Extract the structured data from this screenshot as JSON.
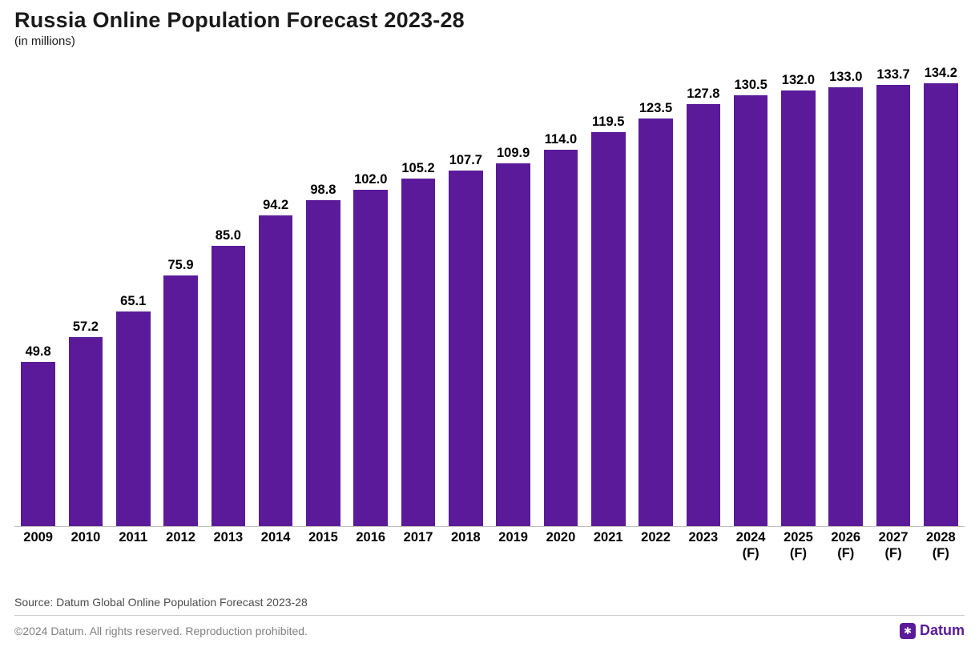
{
  "header": {
    "title": "Russia Online Population Forecast 2023-28",
    "subtitle": "(in millions)"
  },
  "chart": {
    "type": "bar",
    "bar_color": "#5a1a99",
    "background_color": "#ffffff",
    "axis_line_color": "#bfbfbf",
    "bar_width_ratio": 0.72,
    "ylim": [
      0,
      140
    ],
    "title_fontsize": 27,
    "label_fontsize": 16.5,
    "label_fontweight": 700,
    "label_color": "#000000",
    "forecast_marker": "(F)",
    "bars": [
      {
        "category": "2009",
        "value": 49.8,
        "label": "49.8",
        "forecast": false
      },
      {
        "category": "2010",
        "value": 57.2,
        "label": "57.2",
        "forecast": false
      },
      {
        "category": "2011",
        "value": 65.1,
        "label": "65.1",
        "forecast": false
      },
      {
        "category": "2012",
        "value": 75.9,
        "label": "75.9",
        "forecast": false
      },
      {
        "category": "2013",
        "value": 85.0,
        "label": "85.0",
        "forecast": false
      },
      {
        "category": "2014",
        "value": 94.2,
        "label": "94.2",
        "forecast": false
      },
      {
        "category": "2015",
        "value": 98.8,
        "label": "98.8",
        "forecast": false
      },
      {
        "category": "2016",
        "value": 102.0,
        "label": "102.0",
        "forecast": false
      },
      {
        "category": "2017",
        "value": 105.2,
        "label": "105.2",
        "forecast": false
      },
      {
        "category": "2018",
        "value": 107.7,
        "label": "107.7",
        "forecast": false
      },
      {
        "category": "2019",
        "value": 109.9,
        "label": "109.9",
        "forecast": false
      },
      {
        "category": "2020",
        "value": 114.0,
        "label": "114.0",
        "forecast": false
      },
      {
        "category": "2021",
        "value": 119.5,
        "label": "119.5",
        "forecast": false
      },
      {
        "category": "2022",
        "value": 123.5,
        "label": "123.5",
        "forecast": false
      },
      {
        "category": "2023",
        "value": 127.8,
        "label": "127.8",
        "forecast": false
      },
      {
        "category": "2024",
        "value": 130.5,
        "label": "130.5",
        "forecast": true
      },
      {
        "category": "2025",
        "value": 132.0,
        "label": "132.0",
        "forecast": true
      },
      {
        "category": "2026",
        "value": 133.0,
        "label": "133.0",
        "forecast": true
      },
      {
        "category": "2027",
        "value": 133.7,
        "label": "133.7",
        "forecast": true
      },
      {
        "category": "2028",
        "value": 134.2,
        "label": "134.2",
        "forecast": true
      }
    ]
  },
  "source": "Source: Datum Global Online Population Forecast 2023-28",
  "footer": {
    "copyright": "©2024 Datum. All rights reserved. Reproduction prohibited.",
    "logo_text": "Datum",
    "logo_glyph": "✱",
    "logo_color": "#5a1a99"
  }
}
